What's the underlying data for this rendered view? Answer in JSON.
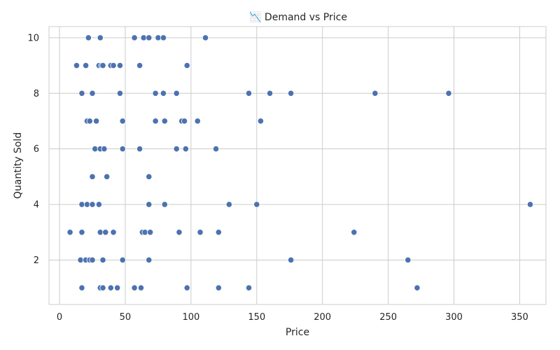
{
  "chart_data": {
    "type": "scatter",
    "title": "📉 Demand vs Price",
    "xlabel": "Price",
    "ylabel": "Quantity Sold",
    "xlim": [
      -8,
      370
    ],
    "ylim": [
      0.4,
      10.4
    ],
    "xticks": [
      0,
      50,
      100,
      150,
      200,
      250,
      300,
      350
    ],
    "yticks": [
      2,
      4,
      6,
      8,
      10
    ],
    "grid": true,
    "color": "#4c72b0",
    "points": [
      {
        "x": 22,
        "y": 10
      },
      {
        "x": 31,
        "y": 10
      },
      {
        "x": 57,
        "y": 10
      },
      {
        "x": 64,
        "y": 10
      },
      {
        "x": 68,
        "y": 10
      },
      {
        "x": 75,
        "y": 10
      },
      {
        "x": 79,
        "y": 10
      },
      {
        "x": 111,
        "y": 10
      },
      {
        "x": 13,
        "y": 9
      },
      {
        "x": 20,
        "y": 9
      },
      {
        "x": 30,
        "y": 9
      },
      {
        "x": 32,
        "y": 9
      },
      {
        "x": 33,
        "y": 9
      },
      {
        "x": 39,
        "y": 9
      },
      {
        "x": 41,
        "y": 9
      },
      {
        "x": 46,
        "y": 9
      },
      {
        "x": 61,
        "y": 9
      },
      {
        "x": 97,
        "y": 9
      },
      {
        "x": 17,
        "y": 8
      },
      {
        "x": 25,
        "y": 8
      },
      {
        "x": 46,
        "y": 8
      },
      {
        "x": 73,
        "y": 8
      },
      {
        "x": 79,
        "y": 8
      },
      {
        "x": 89,
        "y": 8
      },
      {
        "x": 144,
        "y": 8
      },
      {
        "x": 160,
        "y": 8
      },
      {
        "x": 176,
        "y": 8
      },
      {
        "x": 240,
        "y": 8
      },
      {
        "x": 296,
        "y": 8
      },
      {
        "x": 21,
        "y": 7
      },
      {
        "x": 23,
        "y": 7
      },
      {
        "x": 28,
        "y": 7
      },
      {
        "x": 48,
        "y": 7
      },
      {
        "x": 73,
        "y": 7
      },
      {
        "x": 80,
        "y": 7
      },
      {
        "x": 93,
        "y": 7
      },
      {
        "x": 95,
        "y": 7
      },
      {
        "x": 105,
        "y": 7
      },
      {
        "x": 153,
        "y": 7
      },
      {
        "x": 27,
        "y": 6
      },
      {
        "x": 31,
        "y": 6
      },
      {
        "x": 34,
        "y": 6
      },
      {
        "x": 48,
        "y": 6
      },
      {
        "x": 61,
        "y": 6
      },
      {
        "x": 89,
        "y": 6
      },
      {
        "x": 96,
        "y": 6
      },
      {
        "x": 119,
        "y": 6
      },
      {
        "x": 25,
        "y": 5
      },
      {
        "x": 36,
        "y": 5
      },
      {
        "x": 68,
        "y": 5
      },
      {
        "x": 17,
        "y": 4
      },
      {
        "x": 21,
        "y": 4
      },
      {
        "x": 25,
        "y": 4
      },
      {
        "x": 30,
        "y": 4
      },
      {
        "x": 68,
        "y": 4
      },
      {
        "x": 80,
        "y": 4
      },
      {
        "x": 129,
        "y": 4
      },
      {
        "x": 150,
        "y": 4
      },
      {
        "x": 358,
        "y": 4
      },
      {
        "x": 8,
        "y": 3
      },
      {
        "x": 17,
        "y": 3
      },
      {
        "x": 31,
        "y": 3
      },
      {
        "x": 35,
        "y": 3
      },
      {
        "x": 41,
        "y": 3
      },
      {
        "x": 63,
        "y": 3
      },
      {
        "x": 65,
        "y": 3
      },
      {
        "x": 69,
        "y": 3
      },
      {
        "x": 91,
        "y": 3
      },
      {
        "x": 107,
        "y": 3
      },
      {
        "x": 121,
        "y": 3
      },
      {
        "x": 224,
        "y": 3
      },
      {
        "x": 16,
        "y": 2
      },
      {
        "x": 20,
        "y": 2
      },
      {
        "x": 23,
        "y": 2
      },
      {
        "x": 25,
        "y": 2
      },
      {
        "x": 33,
        "y": 2
      },
      {
        "x": 48,
        "y": 2
      },
      {
        "x": 68,
        "y": 2
      },
      {
        "x": 176,
        "y": 2
      },
      {
        "x": 265,
        "y": 2
      },
      {
        "x": 17,
        "y": 1
      },
      {
        "x": 31,
        "y": 1
      },
      {
        "x": 33,
        "y": 1
      },
      {
        "x": 39,
        "y": 1
      },
      {
        "x": 44,
        "y": 1
      },
      {
        "x": 57,
        "y": 1
      },
      {
        "x": 62,
        "y": 1
      },
      {
        "x": 97,
        "y": 1
      },
      {
        "x": 121,
        "y": 1
      },
      {
        "x": 144,
        "y": 1
      },
      {
        "x": 272,
        "y": 1
      }
    ]
  }
}
